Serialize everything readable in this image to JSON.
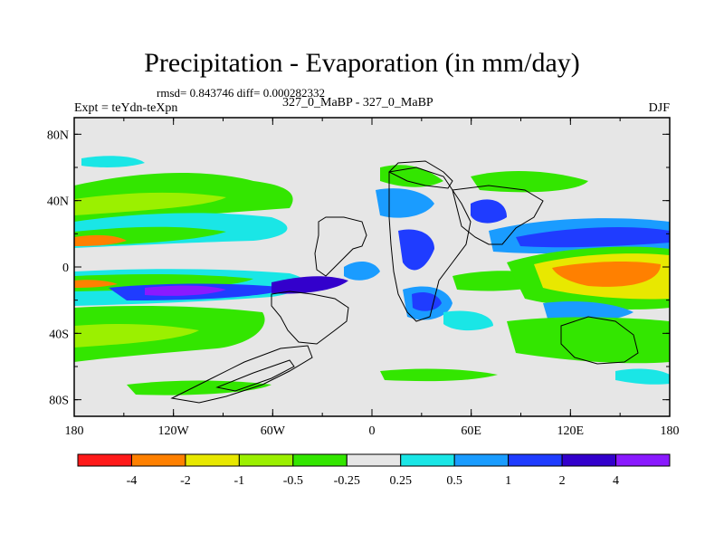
{
  "title": "Precipitation - Evaporation (in mm/day)",
  "stats": "rmsd= 0.843746 diff= 0.000282332",
  "expt": "Expt = teYdn-teXpn",
  "cases": "327_0_MaBP - 327_0_MaBP",
  "season": "DJF",
  "map": {
    "x_ticks": [
      "180",
      "120W",
      "60W",
      "0",
      "60E",
      "120E",
      "180"
    ],
    "y_ticks": [
      "80N",
      "40N",
      "0",
      "40S",
      "80S"
    ],
    "background_color": "#e6e6e6"
  },
  "colorbar": {
    "labels": [
      "-4",
      "-2",
      "-1",
      "-0.5",
      "-0.25",
      "0.25",
      "0.5",
      "1",
      "2",
      "4"
    ],
    "colors": [
      "#ff1a1a",
      "#ff8000",
      "#e8e800",
      "#9bf000",
      "#33e600",
      "#e6e6e6",
      "#1ae6e6",
      "#1a9cff",
      "#1f3cff",
      "#3300cc",
      "#8a1aff"
    ]
  },
  "legend_colors": {
    "strong_negative": "#ff8000",
    "weak_negative": "#33e600",
    "positive": "#1a9cff",
    "strong_positive": "#3300cc"
  }
}
